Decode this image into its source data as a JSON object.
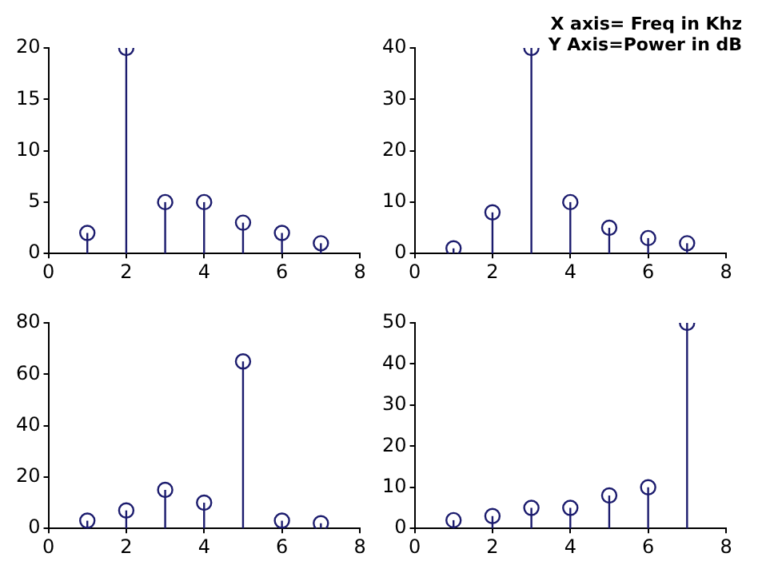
{
  "chart_data": [
    {
      "type": "lollipop",
      "x": [
        1,
        2,
        3,
        4,
        5,
        6,
        7
      ],
      "values": [
        2,
        20,
        5,
        5,
        3,
        2,
        1
      ],
      "color": "#1c1c6e",
      "marker": "circle",
      "xlim": [
        0,
        8
      ],
      "xticks": [
        0,
        2,
        4,
        6,
        8
      ],
      "ylim": [
        0,
        20
      ],
      "yticks": [
        0,
        5,
        10,
        15,
        20
      ]
    },
    {
      "type": "lollipop",
      "x": [
        1,
        2,
        3,
        4,
        5,
        6,
        7
      ],
      "values": [
        1,
        8,
        40,
        10,
        5,
        3,
        2
      ],
      "color": "#1c1c6e",
      "marker": "circle",
      "xlim": [
        0,
        8
      ],
      "xticks": [
        0,
        2,
        4,
        6,
        8
      ],
      "ylim": [
        0,
        40
      ],
      "yticks": [
        0,
        10,
        20,
        30,
        40
      ],
      "annotations": [
        "X axis= Freq in Khz",
        "Y Axis=Power in dB"
      ]
    },
    {
      "type": "lollipop",
      "x": [
        1,
        2,
        3,
        4,
        5,
        6,
        7
      ],
      "values": [
        3,
        7,
        15,
        10,
        65,
        3,
        2
      ],
      "color": "#1c1c6e",
      "marker": "circle",
      "xlim": [
        0,
        8
      ],
      "xticks": [
        0,
        2,
        4,
        6,
        8
      ],
      "ylim": [
        0,
        80
      ],
      "yticks": [
        0,
        20,
        40,
        60,
        80
      ]
    },
    {
      "type": "lollipop",
      "x": [
        1,
        2,
        3,
        4,
        5,
        6,
        7
      ],
      "values": [
        2,
        3,
        5,
        5,
        8,
        10,
        50
      ],
      "color": "#1c1c6e",
      "marker": "circle",
      "xlim": [
        0,
        8
      ],
      "xticks": [
        0,
        2,
        4,
        6,
        8
      ],
      "ylim": [
        0,
        50
      ],
      "yticks": [
        0,
        10,
        20,
        30,
        40,
        50
      ]
    }
  ]
}
